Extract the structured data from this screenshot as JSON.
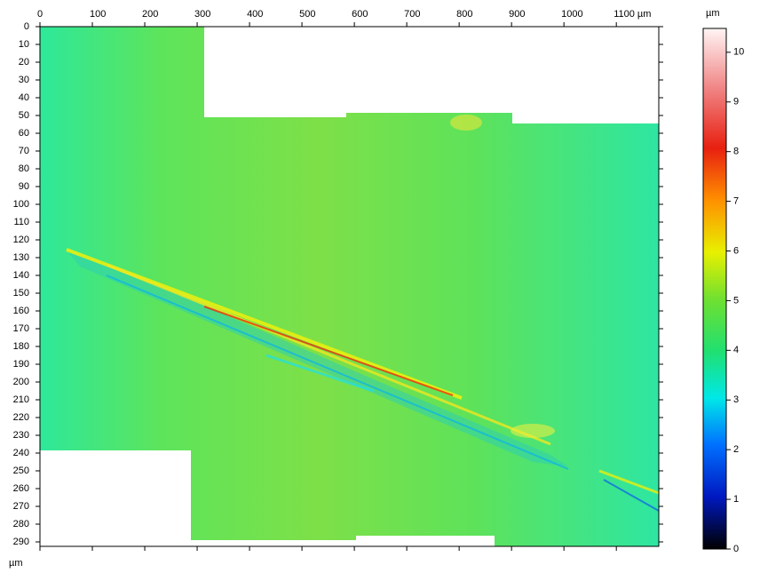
{
  "chart_data": {
    "type": "heatmap",
    "x_unit": "µm",
    "colorbar_unit": "µm",
    "xlim": [
      0,
      1181
    ],
    "xticks": [
      0,
      100,
      200,
      300,
      400,
      500,
      600,
      700,
      800,
      900,
      1000,
      {
        "value": 1100,
        "label": "1100 µm"
      }
    ],
    "ylim": [
      0,
      292.5
    ],
    "yticks": [
      0,
      10,
      20,
      30,
      40,
      50,
      60,
      70,
      80,
      90,
      100,
      110,
      120,
      130,
      140,
      150,
      160,
      170,
      180,
      190,
      200,
      210,
      220,
      230,
      240,
      250,
      260,
      270,
      280,
      290
    ],
    "clim": [
      0,
      10.48
    ],
    "cticks": [
      0,
      1,
      2,
      3,
      4,
      5,
      6,
      7,
      8,
      9,
      10
    ]
  }
}
